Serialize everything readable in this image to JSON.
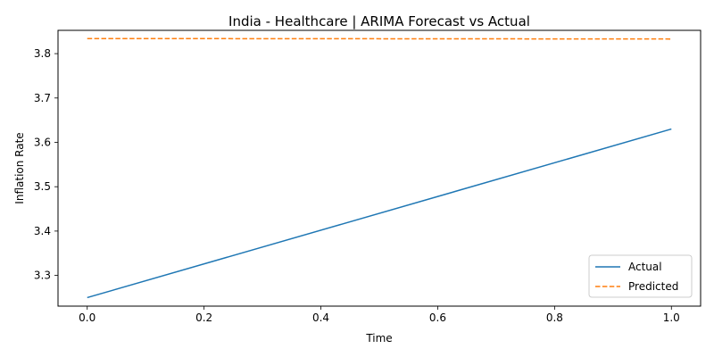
{
  "chart_data": {
    "type": "line",
    "title": "India - Healthcare | ARIMA Forecast vs Actual",
    "xlabel": "Time",
    "ylabel": "Inflation Rate",
    "xlim": [
      -0.05,
      1.05
    ],
    "ylim": [
      3.2308,
      3.8525
    ],
    "xticks": [
      0.0,
      0.2,
      0.4,
      0.6,
      0.8,
      1.0
    ],
    "xtick_labels": [
      "0.0",
      "0.2",
      "0.4",
      "0.6",
      "0.8",
      "1.0"
    ],
    "yticks": [
      3.3,
      3.4,
      3.5,
      3.6,
      3.7,
      3.8
    ],
    "ytick_labels": [
      "3.3",
      "3.4",
      "3.5",
      "3.6",
      "3.7",
      "3.8"
    ],
    "grid": false,
    "legend_position": "lower-right",
    "series": [
      {
        "name": "Actual",
        "x": [
          0.0,
          1.0
        ],
        "y": [
          3.25,
          3.63
        ],
        "color": "#1f77b4",
        "style": "solid"
      },
      {
        "name": "Predicted",
        "x": [
          0.0,
          1.0
        ],
        "y": [
          3.834,
          3.833
        ],
        "color": "#ff7f0e",
        "style": "dashed"
      }
    ]
  }
}
